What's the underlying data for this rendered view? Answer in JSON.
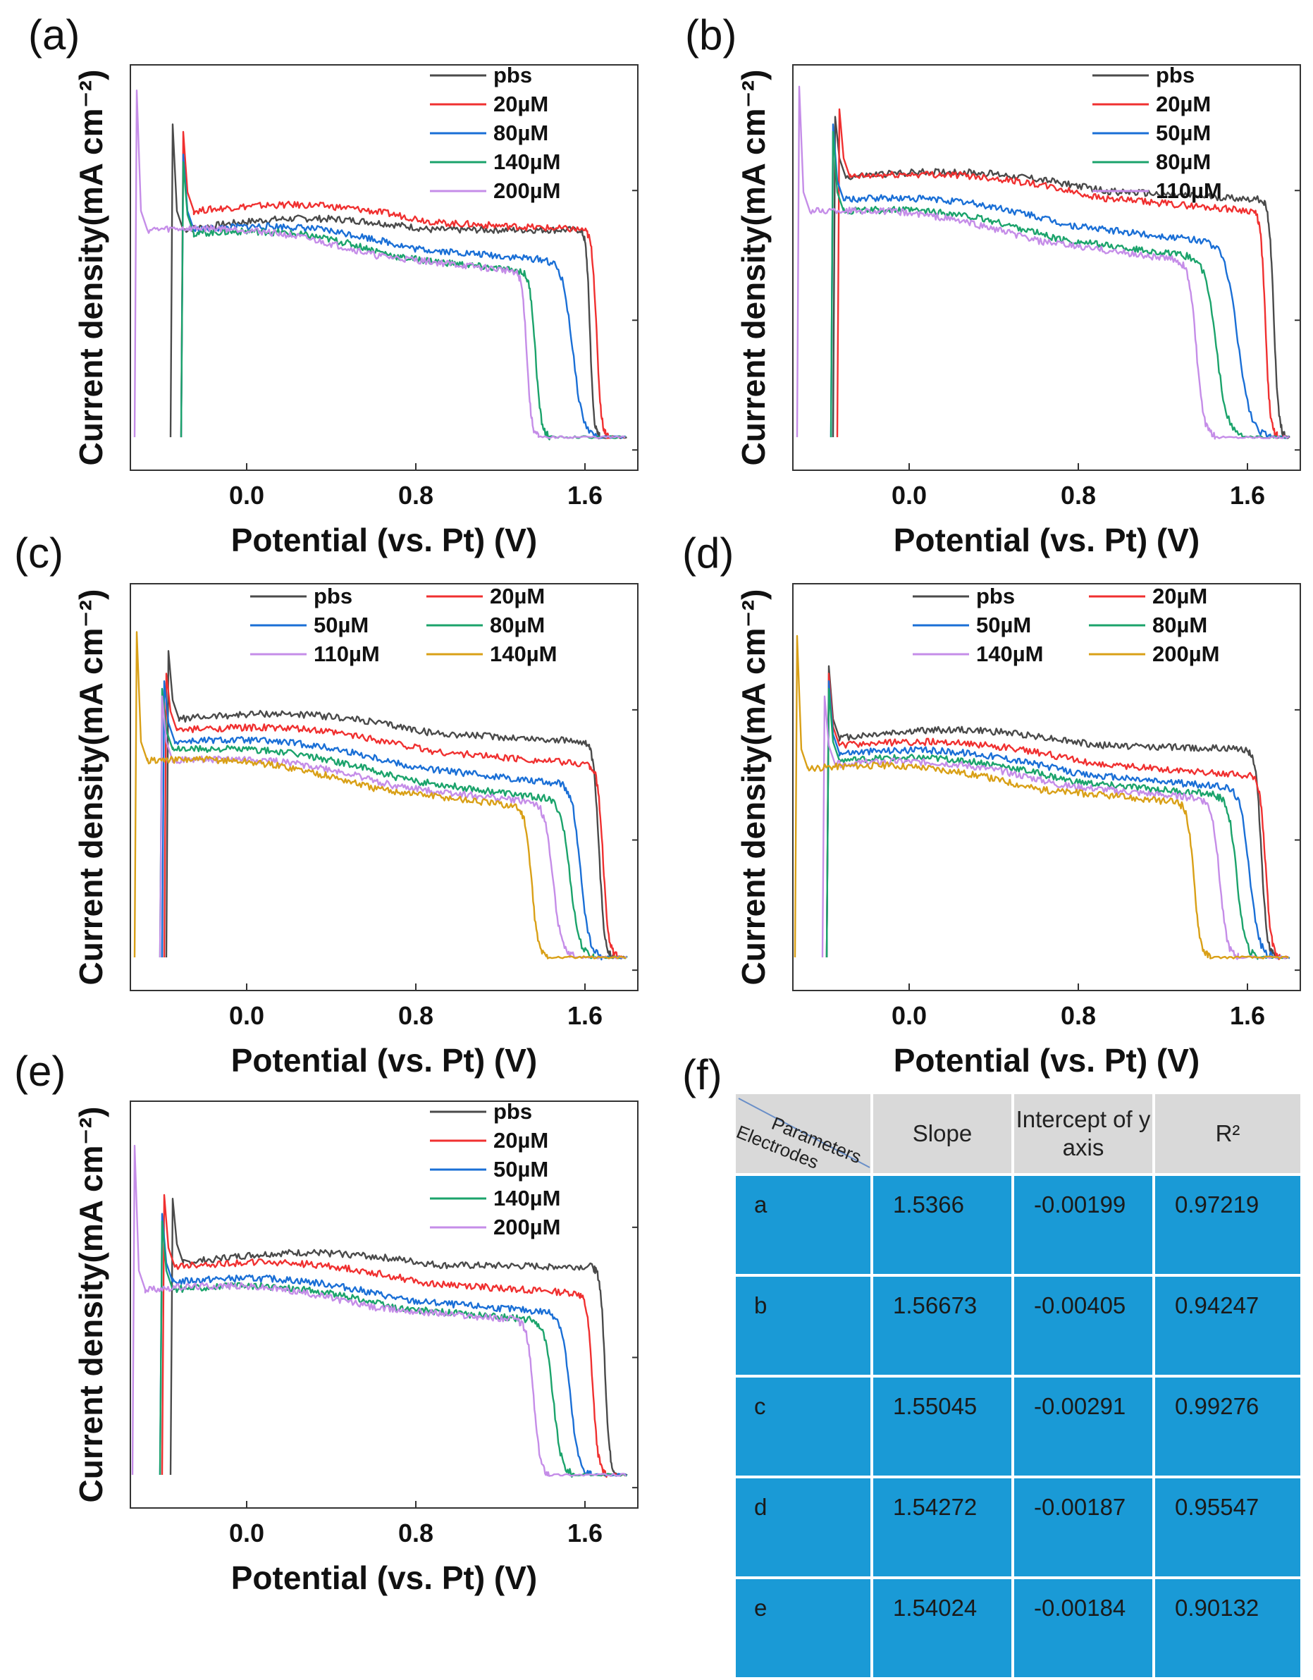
{
  "figure": {
    "x_axis_title": "Potential (vs. Pt) (V)",
    "y_axis_title": "Current density(mA cm⁻²)"
  },
  "colors": {
    "pbs": "#4a4a4a",
    "20µM": "#f03030",
    "50µM": "#1a6fd6",
    "80µM": "#1ba36b",
    "110µM": "#c58de8",
    "140µM": "#1ba36b",
    "200µM": "#c58de8",
    "140µM_c": "#d9a017",
    "200µM_d": "#d9a017",
    "table_header_bg": "#d9d9d9",
    "table_body_bg": "#1a9ad6"
  },
  "chart_data": [
    {
      "panel": "(a)",
      "type": "line",
      "xlabel": "Potential (vs. Pt) (V)",
      "ylabel": "Current density(mA cm⁻²)",
      "x_ticks": [
        "0.0",
        "0.8",
        "1.6"
      ],
      "xlim": [
        -0.55,
        1.85
      ],
      "ylim": [
        0,
        1
      ],
      "y_tick_labels_shown": false,
      "series": [
        {
          "name": "pbs",
          "color": "#4a4a4a",
          "start": -0.35,
          "spike": 0.88,
          "plateau_start": 0.6,
          "plateau_end": 0.6,
          "drop_at": 1.58,
          "drop_width": 0.04
        },
        {
          "name": "20µM",
          "color": "#f03030",
          "start": -0.3,
          "spike": 0.86,
          "plateau_start": 0.65,
          "plateau_end": 0.6,
          "drop_at": 1.6,
          "drop_width": 0.05
        },
        {
          "name": "80µM",
          "color": "#1a6fd6",
          "start": -0.3,
          "spike": 0.8,
          "plateau_start": 0.6,
          "plateau_end": 0.52,
          "drop_at": 1.42,
          "drop_width": 0.11
        },
        {
          "name": "140µM",
          "color": "#1ba36b",
          "start": -0.3,
          "spike": 0.78,
          "plateau_start": 0.59,
          "plateau_end": 0.49,
          "drop_at": 1.3,
          "drop_width": 0.06
        },
        {
          "name": "200µM",
          "color": "#c58de8",
          "start": -0.52,
          "spike": 0.97,
          "plateau_start": 0.6,
          "plateau_end": 0.49,
          "drop_at": 1.27,
          "drop_width": 0.05
        }
      ],
      "legend": [
        "pbs",
        "20µM",
        "80µM",
        "140µM",
        "200µM"
      ],
      "legend_columns": 1
    },
    {
      "panel": "(b)",
      "type": "line",
      "xlabel": "Potential (vs. Pt) (V)",
      "ylabel": "Current density(mA cm⁻²)",
      "x_ticks": [
        "0.0",
        "0.8",
        "1.6"
      ],
      "xlim": [
        -0.55,
        1.85
      ],
      "ylim": [
        0,
        1
      ],
      "y_tick_labels_shown": false,
      "series": [
        {
          "name": "pbs",
          "color": "#4a4a4a",
          "start": -0.35,
          "spike": 0.9,
          "plateau_start": 0.74,
          "plateau_end": 0.68,
          "drop_at": 1.67,
          "drop_width": 0.05
        },
        {
          "name": "20µM",
          "color": "#f03030",
          "start": -0.33,
          "spike": 0.92,
          "plateau_start": 0.74,
          "plateau_end": 0.65,
          "drop_at": 1.63,
          "drop_width": 0.05
        },
        {
          "name": "50µM",
          "color": "#1a6fd6",
          "start": -0.36,
          "spike": 0.88,
          "plateau_start": 0.68,
          "plateau_end": 0.57,
          "drop_at": 1.4,
          "drop_width": 0.14
        },
        {
          "name": "80µM",
          "color": "#1ba36b",
          "start": -0.36,
          "spike": 0.86,
          "plateau_start": 0.65,
          "plateau_end": 0.53,
          "drop_at": 1.32,
          "drop_width": 0.12
        },
        {
          "name": "110µM",
          "color": "#c58de8",
          "start": -0.52,
          "spike": 0.98,
          "plateau_start": 0.65,
          "plateau_end": 0.52,
          "drop_at": 1.27,
          "drop_width": 0.08
        }
      ],
      "legend": [
        "pbs",
        "20µM",
        "50µM",
        "80µM",
        "110µM"
      ],
      "legend_columns": 1
    },
    {
      "panel": "(c)",
      "type": "line",
      "xlabel": "Potential (vs. Pt) (V)",
      "ylabel": "Current density(mA cm⁻²)",
      "x_ticks": [
        "0.0",
        "0.8",
        "1.6"
      ],
      "xlim": [
        -0.55,
        1.85
      ],
      "ylim": [
        0,
        1
      ],
      "y_tick_labels_shown": false,
      "series": [
        {
          "name": "pbs",
          "color": "#4a4a4a",
          "start": -0.37,
          "spike": 0.86,
          "plateau_start": 0.68,
          "plateau_end": 0.62,
          "drop_at": 1.6,
          "drop_width": 0.06
        },
        {
          "name": "20µM",
          "color": "#f03030",
          "start": -0.38,
          "spike": 0.8,
          "plateau_start": 0.65,
          "plateau_end": 0.56,
          "drop_at": 1.62,
          "drop_width": 0.06
        },
        {
          "name": "50µM",
          "color": "#1a6fd6",
          "start": -0.39,
          "spike": 0.78,
          "plateau_start": 0.62,
          "plateau_end": 0.51,
          "drop_at": 1.48,
          "drop_width": 0.09
        },
        {
          "name": "80µM",
          "color": "#1ba36b",
          "start": -0.4,
          "spike": 0.76,
          "plateau_start": 0.6,
          "plateau_end": 0.47,
          "drop_at": 1.42,
          "drop_width": 0.1
        },
        {
          "name": "110µM",
          "color": "#c58de8",
          "start": -0.4,
          "spike": 0.74,
          "plateau_start": 0.57,
          "plateau_end": 0.46,
          "drop_at": 1.35,
          "drop_width": 0.09
        },
        {
          "name": "140µM",
          "color": "#d9a017",
          "start": -0.52,
          "spike": 0.91,
          "plateau_start": 0.57,
          "plateau_end": 0.45,
          "drop_at": 1.27,
          "drop_width": 0.07
        }
      ],
      "legend": [
        "pbs",
        "20µM",
        "50µM",
        "80µM",
        "110µM",
        "140µM"
      ],
      "legend_columns": 2
    },
    {
      "panel": "(d)",
      "type": "line",
      "xlabel": "Potential (vs. Pt) (V)",
      "ylabel": "Current density(mA cm⁻²)",
      "x_ticks": [
        "0.0",
        "0.8",
        "1.6"
      ],
      "xlim": [
        -0.55,
        1.85
      ],
      "ylim": [
        0,
        1
      ],
      "y_tick_labels_shown": false,
      "series": [
        {
          "name": "pbs",
          "color": "#4a4a4a",
          "start": -0.38,
          "spike": 0.82,
          "plateau_start": 0.63,
          "plateau_end": 0.6,
          "drop_at": 1.6,
          "drop_width": 0.06
        },
        {
          "name": "20µM",
          "color": "#f03030",
          "start": -0.38,
          "spike": 0.8,
          "plateau_start": 0.61,
          "plateau_end": 0.53,
          "drop_at": 1.62,
          "drop_width": 0.06
        },
        {
          "name": "50µM",
          "color": "#1a6fd6",
          "start": -0.38,
          "spike": 0.78,
          "plateau_start": 0.59,
          "plateau_end": 0.5,
          "drop_at": 1.5,
          "drop_width": 0.1
        },
        {
          "name": "80µM",
          "color": "#1ba36b",
          "start": -0.38,
          "spike": 0.76,
          "plateau_start": 0.57,
          "plateau_end": 0.48,
          "drop_at": 1.45,
          "drop_width": 0.09
        },
        {
          "name": "140µM",
          "color": "#c58de8",
          "start": -0.4,
          "spike": 0.74,
          "plateau_start": 0.56,
          "plateau_end": 0.47,
          "drop_at": 1.38,
          "drop_width": 0.08
        },
        {
          "name": "200µM",
          "color": "#d9a017",
          "start": -0.53,
          "spike": 0.9,
          "plateau_start": 0.55,
          "plateau_end": 0.46,
          "drop_at": 1.27,
          "drop_width": 0.07
        }
      ],
      "legend": [
        "pbs",
        "20µM",
        "50µM",
        "80µM",
        "140µM",
        "200µM"
      ],
      "legend_columns": 2
    },
    {
      "panel": "(e)",
      "type": "line",
      "xlabel": "Potential (vs. Pt) (V)",
      "ylabel": "Current density(mA cm⁻²)",
      "x_ticks": [
        "0.0",
        "0.8",
        "1.6"
      ],
      "xlim": [
        -0.55,
        1.85
      ],
      "ylim": [
        0,
        1
      ],
      "y_tick_labels_shown": false,
      "series": [
        {
          "name": "pbs",
          "color": "#4a4a4a",
          "start": -0.35,
          "spike": 0.78,
          "plateau_start": 0.61,
          "plateau_end": 0.6,
          "drop_at": 1.64,
          "drop_width": 0.05
        },
        {
          "name": "20µM",
          "color": "#f03030",
          "start": -0.39,
          "spike": 0.79,
          "plateau_start": 0.6,
          "plateau_end": 0.53,
          "drop_at": 1.57,
          "drop_width": 0.06
        },
        {
          "name": "50µM",
          "color": "#1a6fd6",
          "start": -0.4,
          "spike": 0.74,
          "plateau_start": 0.56,
          "plateau_end": 0.48,
          "drop_at": 1.43,
          "drop_width": 0.09
        },
        {
          "name": "140µM",
          "color": "#1ba36b",
          "start": -0.4,
          "spike": 0.72,
          "plateau_start": 0.54,
          "plateau_end": 0.46,
          "drop_at": 1.35,
          "drop_width": 0.09
        },
        {
          "name": "200µM",
          "color": "#c58de8",
          "start": -0.53,
          "spike": 0.92,
          "plateau_start": 0.54,
          "plateau_end": 0.46,
          "drop_at": 1.28,
          "drop_width": 0.07
        }
      ],
      "legend": [
        "pbs",
        "20µM",
        "50µM",
        "140µM",
        "200µM"
      ],
      "legend_columns": 1
    },
    {
      "panel": "(f)",
      "type": "table",
      "corner_top": "Parameters",
      "corner_bottom": "Electrodes",
      "columns": [
        "Slope",
        "Intercept of y axis",
        "R²"
      ],
      "rows": [
        {
          "electrode": "a",
          "slope": "1.5366",
          "intercept": "-0.00199",
          "r2": "0.97219"
        },
        {
          "electrode": "b",
          "slope": "1.56673",
          "intercept": "-0.00405",
          "r2": "0.94247"
        },
        {
          "electrode": "c",
          "slope": "1.55045",
          "intercept": "-0.00291",
          "r2": "0.99276"
        },
        {
          "electrode": "d",
          "slope": "1.54272",
          "intercept": "-0.00187",
          "r2": "0.95547"
        },
        {
          "electrode": "e",
          "slope": "1.54024",
          "intercept": "-0.00184",
          "r2": "0.90132"
        }
      ]
    }
  ]
}
